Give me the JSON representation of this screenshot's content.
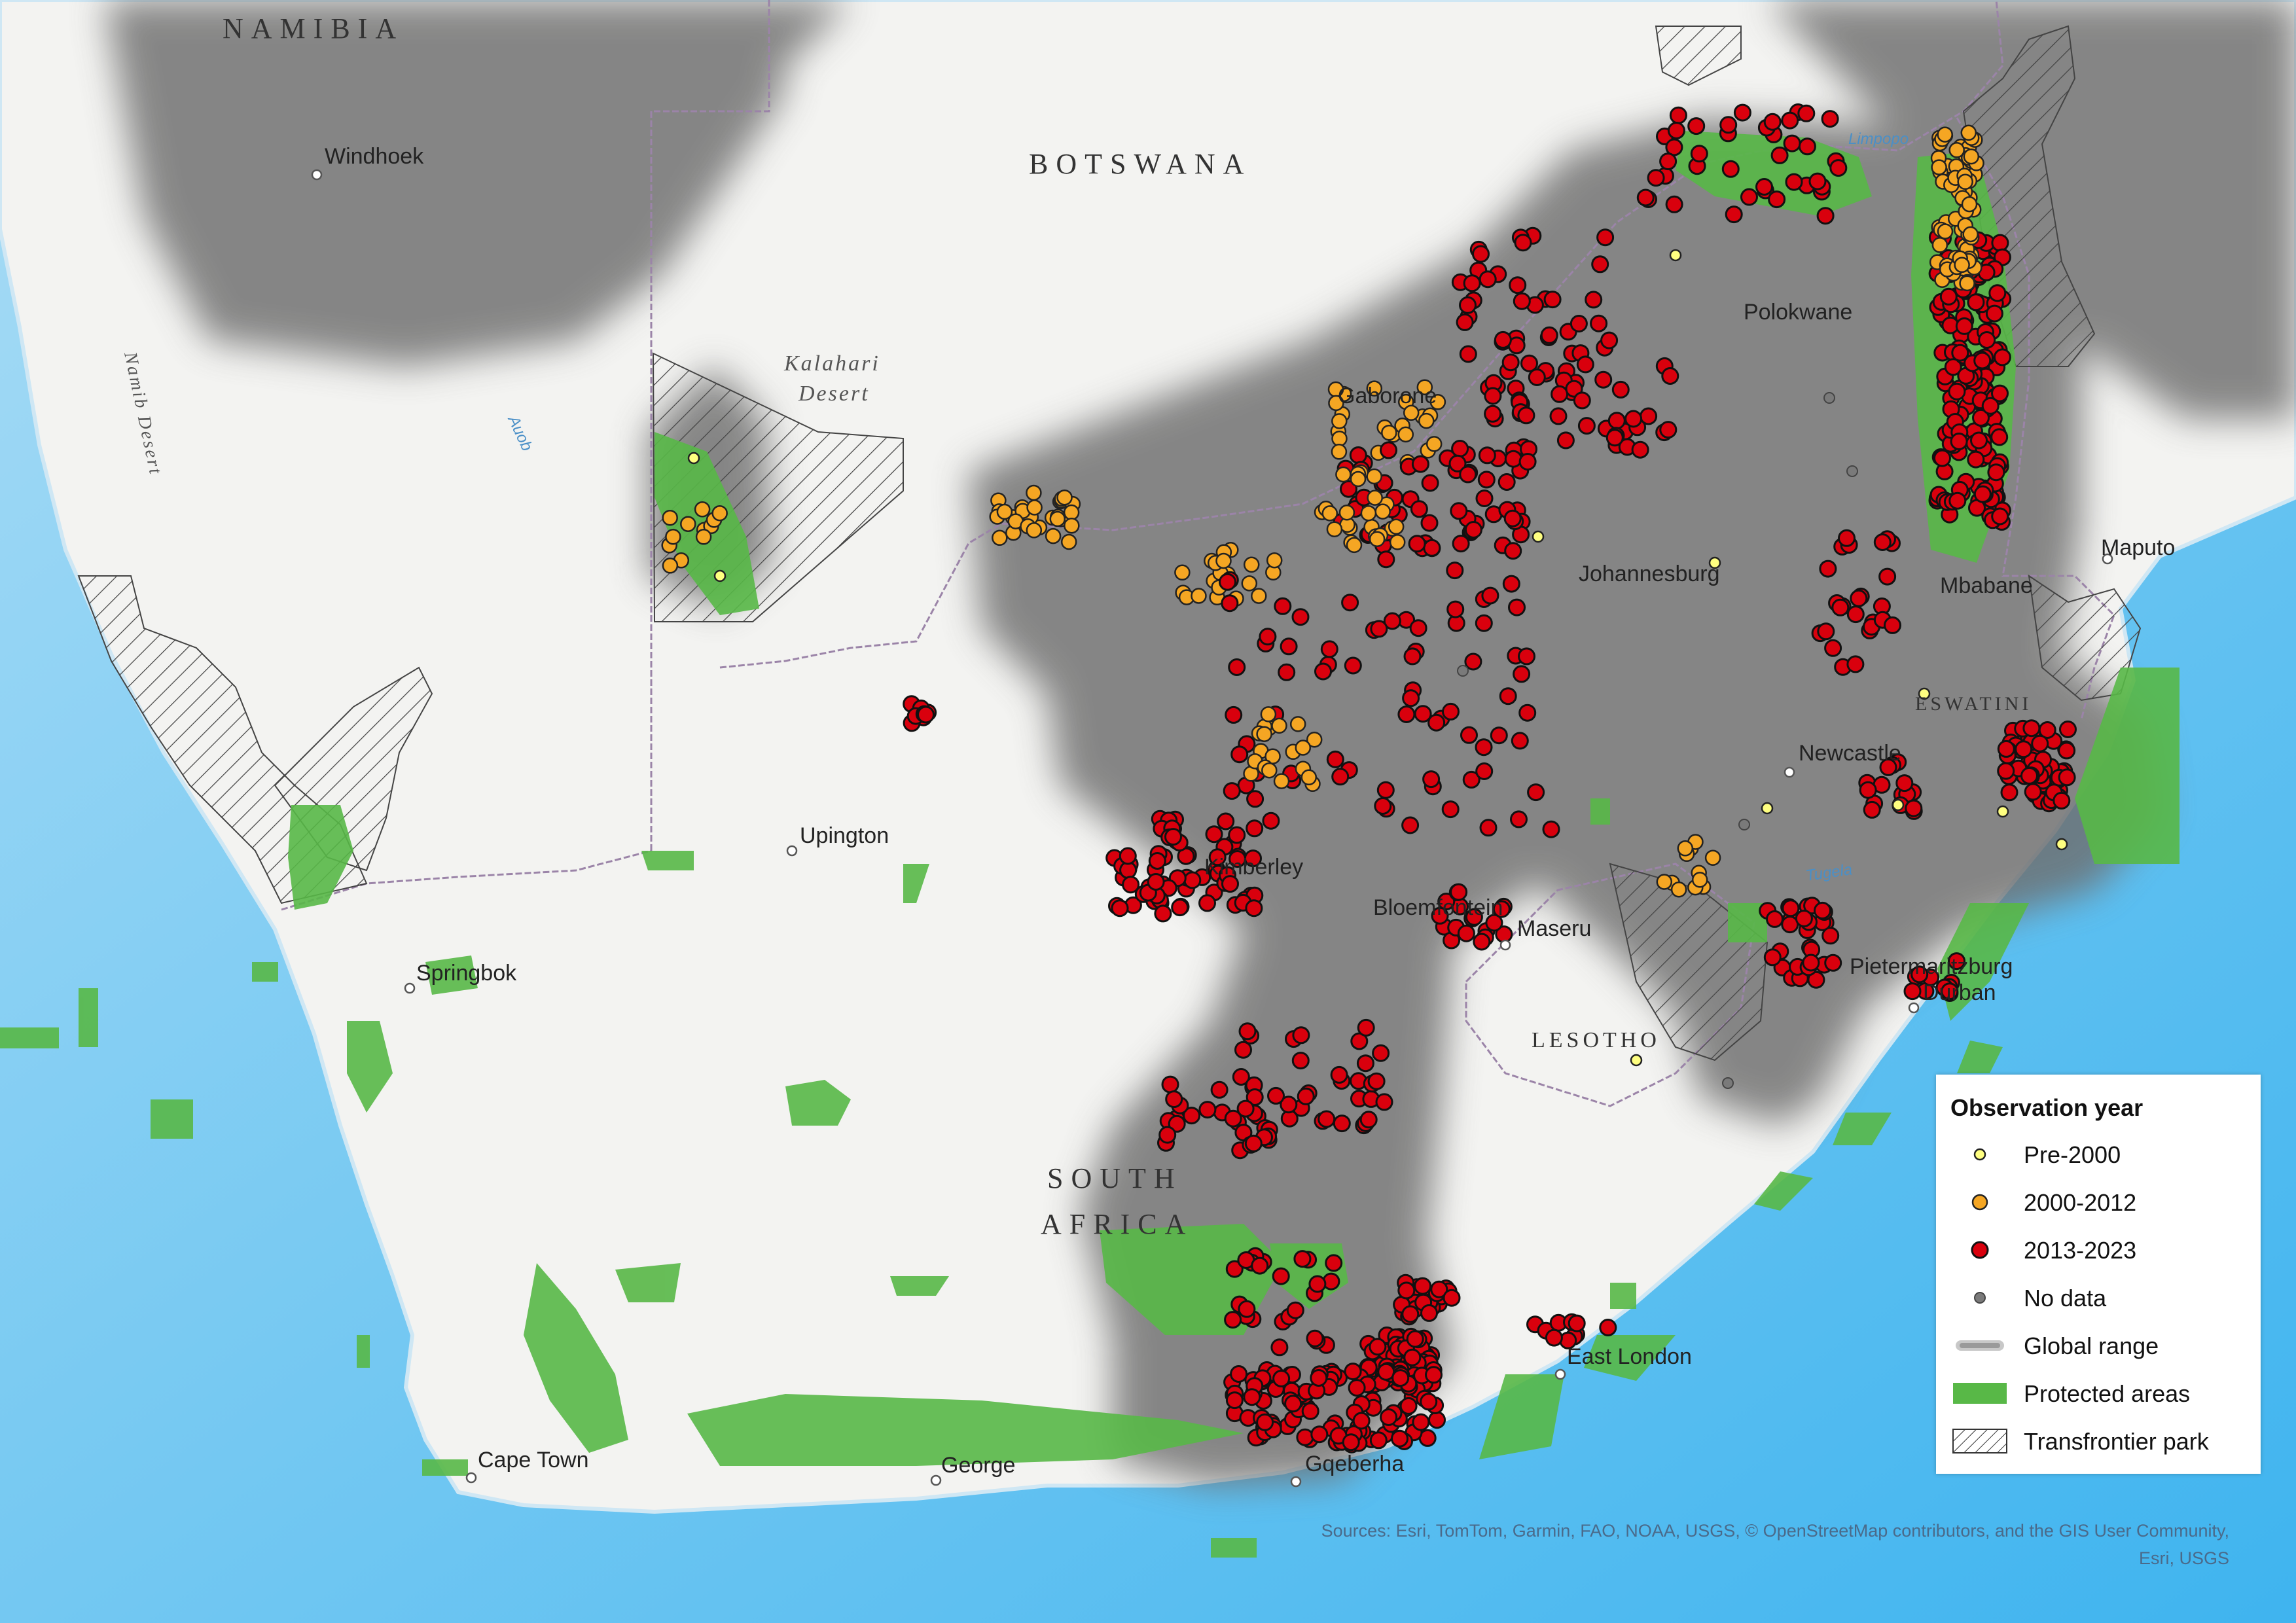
{
  "map": {
    "country_labels": [
      {
        "text": "NAMIBIA",
        "name": "label-namibia"
      },
      {
        "text": "BOTSWANA",
        "name": "label-botswana"
      },
      {
        "text": "SOUTH",
        "name": "label-south"
      },
      {
        "text": "AFRICA",
        "name": "label-africa"
      },
      {
        "text": "LESOTHO",
        "name": "label-lesotho"
      },
      {
        "text": "ESWATINI",
        "name": "label-eswatini"
      }
    ],
    "region_labels": [
      {
        "text": "Kalahari",
        "name": "label-kalahari"
      },
      {
        "text": "Desert",
        "name": "label-kalahari-desert"
      },
      {
        "text": "Namib Desert",
        "name": "label-namib-desert"
      }
    ],
    "river_labels": [
      {
        "text": "Auob",
        "name": "label-auob"
      },
      {
        "text": "Limpopo",
        "name": "label-limpopo"
      },
      {
        "text": "Tugela",
        "name": "label-tugela"
      }
    ],
    "cities": [
      {
        "name": "Windhoek"
      },
      {
        "name": "Gaborone"
      },
      {
        "name": "Polokwane"
      },
      {
        "name": "Johannesburg"
      },
      {
        "name": "Maputo"
      },
      {
        "name": "Mbabane"
      },
      {
        "name": "Newcastle"
      },
      {
        "name": "Upington"
      },
      {
        "name": "Kimberley"
      },
      {
        "name": "Bloemfontein"
      },
      {
        "name": "Maseru"
      },
      {
        "name": "Pietermaritzburg"
      },
      {
        "name": "Durban"
      },
      {
        "name": "Springbok"
      },
      {
        "name": "East London"
      },
      {
        "name": "Cape Town"
      },
      {
        "name": "George"
      },
      {
        "name": "Gqeberha"
      }
    ]
  },
  "colors": {
    "ocean": "#7cc6ef",
    "land": "#f3f3f1",
    "range": "#6e6e6e",
    "protected": "#58b847",
    "pre2000": "#ffff80",
    "y2000_2012": "#f5a623",
    "y2013_2023": "#d9000d",
    "nodata": "#7a7a7a",
    "border": "#9b84a8"
  },
  "legend": {
    "title": "Observation year",
    "items": [
      {
        "label": "Pre-2000",
        "symbol": "dot-small-yellow"
      },
      {
        "label": "2000-2012",
        "symbol": "dot-orange"
      },
      {
        "label": "2013-2023",
        "symbol": "dot-red"
      },
      {
        "label": "No data",
        "symbol": "dot-grey"
      },
      {
        "label": "Global range",
        "symbol": "grey-band"
      },
      {
        "label": "Protected areas",
        "symbol": "green-fill"
      },
      {
        "label": "Transfrontier park",
        "symbol": "hatch"
      }
    ]
  },
  "sources": {
    "line1": "Sources: Esri, TomTom, Garmin, FAO, NOAA, USGS, © OpenStreetMap contributors, and the GIS User Community,",
    "line2": "Esri, USGS"
  }
}
